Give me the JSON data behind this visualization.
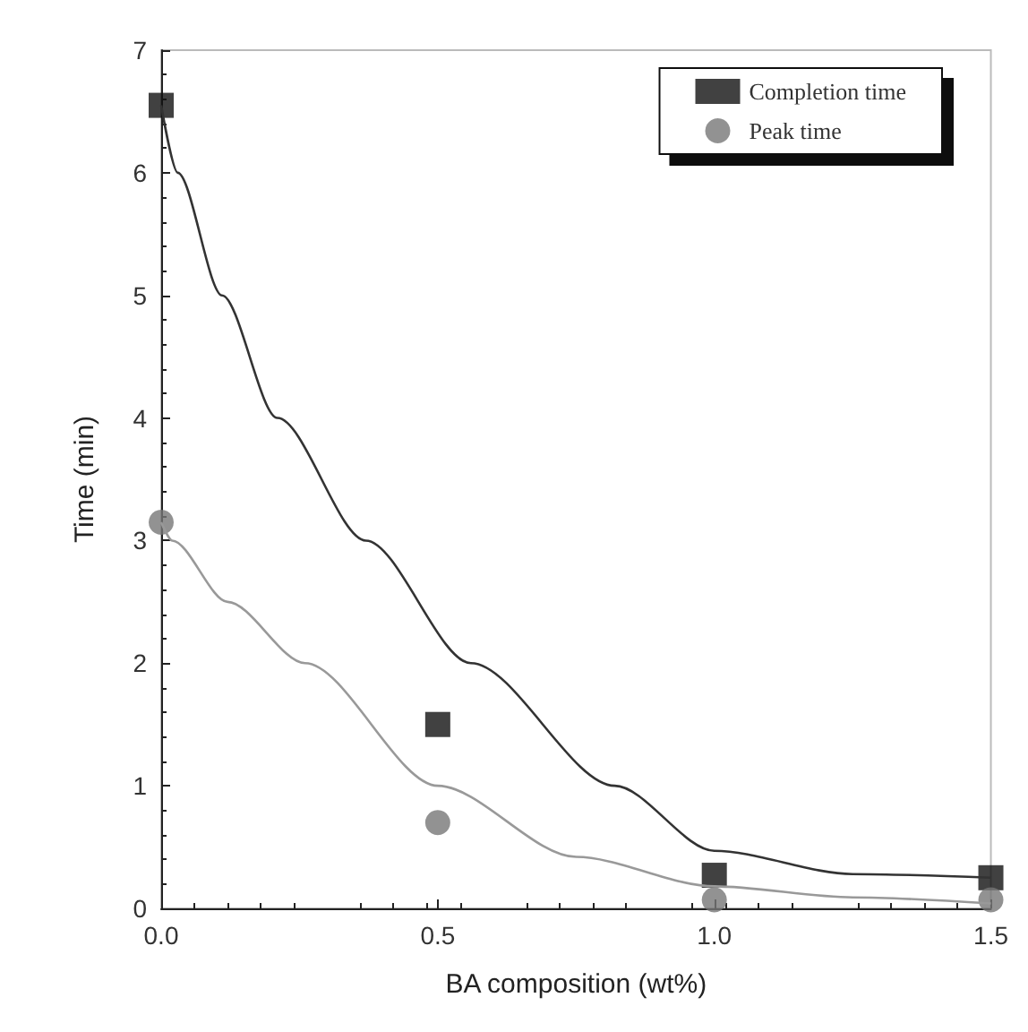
{
  "chart_data": {
    "type": "scatter",
    "xlabel": "BA composition (wt%)",
    "ylabel": "Time (min)",
    "xlim": [
      0,
      1.5
    ],
    "xticks": [
      {
        "value": 0,
        "label": "0.0"
      },
      {
        "value": 0.5,
        "label": "0.5"
      },
      {
        "value": 1,
        "label": "1.0"
      },
      {
        "value": 1.5,
        "label": "1.5"
      }
    ],
    "ylim": [
      0,
      7
    ],
    "yticks": [
      0,
      1,
      2,
      3,
      4,
      5,
      6,
      7
    ],
    "grid": false,
    "legend": "top right",
    "series": [
      {
        "name": "Completion time",
        "marker": "square",
        "color": "#111111",
        "x": [
          0,
          0.5,
          1,
          1.5
        ],
        "values": [
          6.55,
          1.5,
          0.27,
          0.25
        ]
      },
      {
        "name": "Peak time",
        "marker": "circle",
        "color": "#777777",
        "x": [
          0,
          0.5,
          1,
          1.5
        ],
        "values": [
          3.15,
          0.7,
          0.07,
          0.07
        ]
      },
      {
        "type": "line",
        "marker": "none",
        "color": "#333333",
        "x": [
          0,
          0.03,
          0.11,
          0.21,
          0.37,
          0.56,
          0.82,
          1.0,
          1.25,
          1.5
        ],
        "values": [
          6.55,
          6,
          5,
          4,
          3,
          2,
          1,
          0.47,
          0.28,
          0.25
        ]
      },
      {
        "type": "line",
        "marker": "none",
        "color": "#999999",
        "x": [
          0,
          0.02,
          0.12,
          0.26,
          0.5,
          0.75,
          1.0,
          1.25,
          1.5
        ],
        "values": [
          3.15,
          3,
          2.5,
          2,
          1,
          0.42,
          0.18,
          0.09,
          0.04
        ]
      }
    ]
  }
}
